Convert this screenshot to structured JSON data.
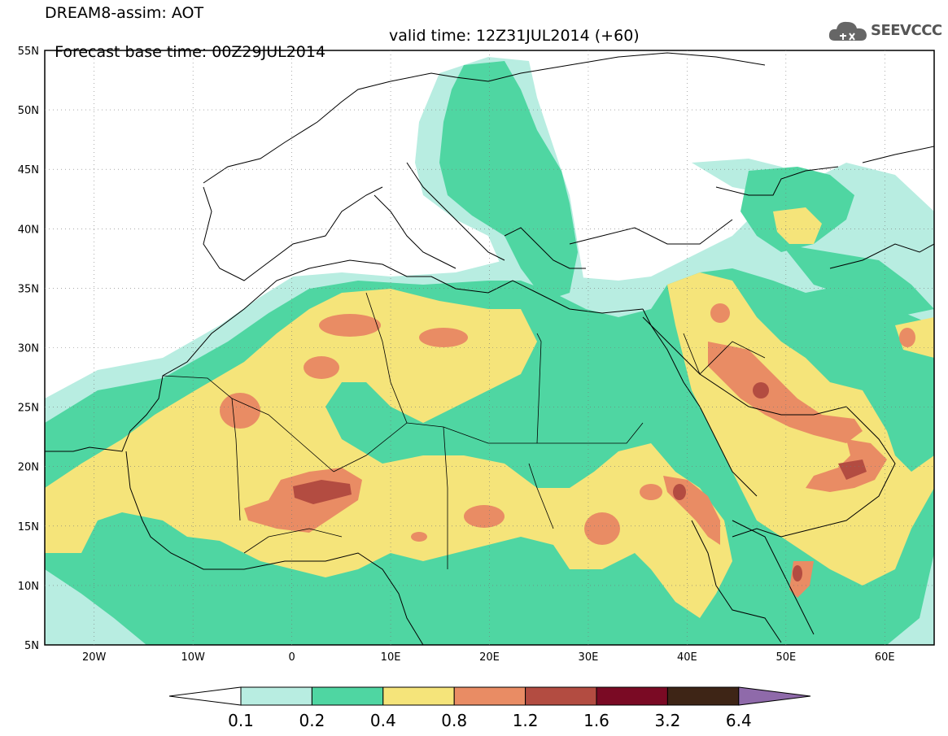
{
  "header": {
    "title_line1": "DREAM8-assim: AOT",
    "title_line2": "Forecast base time: 00Z29JUL2014",
    "valid_time": "valid time: 12Z31JUL2014 (+60)"
  },
  "logo": {
    "text": "SEEVCCC"
  },
  "map": {
    "lon_ticks": [
      "20W",
      "10W",
      "0",
      "10E",
      "20E",
      "30E",
      "40E",
      "50E",
      "60E"
    ],
    "lat_ticks": [
      "55N",
      "50N",
      "45N",
      "40N",
      "35N",
      "30N",
      "25N",
      "20N",
      "15N",
      "10N",
      "5N"
    ],
    "lon_range": [
      -25,
      65
    ],
    "lat_range": [
      5,
      55
    ]
  },
  "colorbar": {
    "labels": [
      "0.1",
      "0.2",
      "0.4",
      "0.8",
      "1.2",
      "1.6",
      "3.2",
      "6.4"
    ],
    "colors": [
      "#ffffff",
      "#b8ede1",
      "#4fd6a2",
      "#f5e47a",
      "#e98c64",
      "#b34c41",
      "#7a0a24",
      "#3e2516",
      "#8f6aaa"
    ]
  },
  "aot_colors": {
    "c01": "#b8ede1",
    "c02": "#4fd6a2",
    "c04": "#f5e47a",
    "c08": "#e98c64",
    "c12": "#b34c41",
    "c16": "#7a0a24"
  }
}
